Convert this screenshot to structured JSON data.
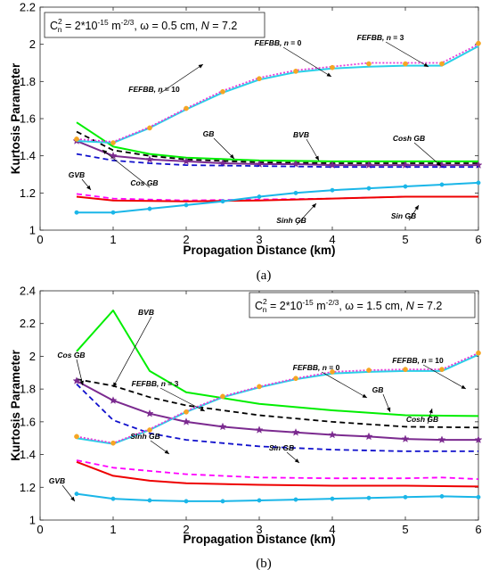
{
  "chart_data": [
    {
      "panel": "a",
      "caption": "(a)",
      "type": "line",
      "xlabel": "Propagation Distance (km)",
      "ylabel": "Kurtosis Parameter",
      "xlim": [
        0,
        6
      ],
      "ylim": [
        1,
        2.2
      ],
      "xticks": [
        "0",
        "1",
        "2",
        "3",
        "4",
        "5",
        "6"
      ],
      "yticks": [
        "1",
        "1.2",
        "1.4",
        "1.6",
        "1.8",
        "2",
        "2.2"
      ],
      "grid": false,
      "parameter_box": {
        "cn_label": "C",
        "cn_sub": "n",
        "cn_sup": "2",
        "cn_value": " = 2*10",
        "cn_exp": "-15",
        "cn_unit": " m",
        "cn_unit_exp": "-2/3",
        "omega": ",  ω = 0.5 cm,  ",
        "n_label": "N",
        "n_value": " = 7.2"
      },
      "series": [
        {
          "color": "#00ee00",
          "style": "solid",
          "marker": "none",
          "x": [
            0.5,
            1,
            1.5,
            2,
            3,
            4,
            5,
            6
          ],
          "y": [
            1.58,
            1.45,
            1.41,
            1.39,
            1.375,
            1.37,
            1.37,
            1.37
          ]
        },
        {
          "color": "#000000",
          "style": "dashed",
          "marker": "none",
          "x": [
            0.5,
            1,
            1.5,
            2,
            3,
            4,
            5,
            6
          ],
          "y": [
            1.53,
            1.43,
            1.4,
            1.38,
            1.365,
            1.36,
            1.36,
            1.36
          ]
        },
        {
          "color": "#7b2a8f",
          "style": "solid",
          "marker": "star",
          "x": [
            0.5,
            1,
            1.5,
            2,
            2.5,
            3,
            3.5,
            4,
            4.5,
            5,
            5.5,
            6
          ],
          "y": [
            1.48,
            1.4,
            1.38,
            1.37,
            1.36,
            1.355,
            1.355,
            1.35,
            1.35,
            1.35,
            1.35,
            1.35
          ]
        },
        {
          "color": "#1010cc",
          "style": "dashed",
          "marker": "none",
          "x": [
            0.5,
            1,
            1.5,
            2,
            3,
            4,
            5,
            6
          ],
          "y": [
            1.41,
            1.375,
            1.36,
            1.35,
            1.345,
            1.34,
            1.34,
            1.34
          ]
        },
        {
          "color": "#ff00ff",
          "style": "dashed",
          "marker": "none",
          "x": [
            0.5,
            1,
            2,
            3,
            4,
            5,
            6
          ],
          "y": [
            1.195,
            1.17,
            1.16,
            1.165,
            1.17,
            1.18,
            1.18
          ]
        },
        {
          "color": "#ee0000",
          "style": "solid",
          "marker": "none",
          "x": [
            0.5,
            1,
            2,
            3,
            4,
            5,
            6
          ],
          "y": [
            1.18,
            1.16,
            1.155,
            1.16,
            1.17,
            1.18,
            1.18
          ]
        },
        {
          "color": "#1ab6e8",
          "style": "solid",
          "marker": "circle",
          "x": [
            0.5,
            1,
            1.5,
            2,
            2.5,
            3,
            3.5,
            4,
            4.5,
            5,
            5.5,
            6
          ],
          "y": [
            1.095,
            1.095,
            1.115,
            1.135,
            1.155,
            1.18,
            1.2,
            1.215,
            1.225,
            1.235,
            1.245,
            1.255
          ]
        },
        {
          "color": "#2ad0e8",
          "style": "solid",
          "marker": "none",
          "x": [
            0.5,
            1,
            1.5,
            2,
            2.5,
            3,
            3.5,
            4,
            4.5,
            5,
            5.5,
            6
          ],
          "y": [
            1.48,
            1.47,
            1.55,
            1.65,
            1.74,
            1.81,
            1.85,
            1.87,
            1.88,
            1.885,
            1.885,
            1.99
          ]
        },
        {
          "color": "#e53ad8",
          "style": "dotted",
          "marker": "none",
          "x": [
            0.5,
            1,
            1.5,
            2,
            2.5,
            3,
            3.5,
            4,
            4.5,
            5,
            5.5,
            6
          ],
          "y": [
            1.49,
            1.475,
            1.555,
            1.655,
            1.75,
            1.82,
            1.86,
            1.88,
            1.9,
            1.9,
            1.9,
            2.0
          ]
        },
        {
          "color": "#f5a623",
          "style": "none",
          "marker": "circle",
          "x": [
            0.5,
            1,
            1.5,
            2,
            2.5,
            3,
            3.5,
            4,
            4.5,
            5,
            5.5,
            6
          ],
          "y": [
            1.49,
            1.47,
            1.55,
            1.655,
            1.745,
            1.815,
            1.855,
            1.875,
            1.895,
            1.895,
            1.895,
            2.005
          ]
        }
      ],
      "annotations": [
        {
          "text": "FEFBB,",
          "n": "n",
          "val": " = 10"
        },
        {
          "text": "FEFBB,",
          "n": "n",
          "val": " = 0"
        },
        {
          "text": "FEFBB,",
          "n": "n",
          "val": " = 3"
        },
        {
          "text": "GB"
        },
        {
          "text": "BVB"
        },
        {
          "text": "Cosh GB"
        },
        {
          "text": "Cos GB"
        },
        {
          "text": "GVB"
        },
        {
          "text": "Sinh GB"
        },
        {
          "text": "Sin GB"
        }
      ]
    },
    {
      "panel": "b",
      "caption": "(b)",
      "type": "line",
      "xlabel": "Propagation Distance (km)",
      "ylabel": "Kurtosis Parameter",
      "xlim": [
        0,
        6
      ],
      "ylim": [
        1,
        2.4
      ],
      "xticks": [
        "0",
        "1",
        "2",
        "3",
        "4",
        "5",
        "6"
      ],
      "yticks": [
        "1",
        "1.2",
        "1.4",
        "1.6",
        "1.8",
        "2",
        "2.2",
        "2.4"
      ],
      "grid": false,
      "parameter_box": {
        "cn_label": "C",
        "cn_sub": "n",
        "cn_sup": "2",
        "cn_value": " = 2*10",
        "cn_exp": "-15",
        "cn_unit": " m",
        "cn_unit_exp": "-2/3",
        "omega": ",  ω = 1.5 cm,  ",
        "n_label": "N",
        "n_value": " = 7.2"
      },
      "series": [
        {
          "color": "#00ee00",
          "style": "solid",
          "marker": "none",
          "x": [
            0.5,
            1,
            1.5,
            2,
            3,
            4,
            5,
            6
          ],
          "y": [
            2.03,
            2.28,
            1.91,
            1.78,
            1.71,
            1.67,
            1.64,
            1.635
          ]
        },
        {
          "color": "#000000",
          "style": "dashed",
          "marker": "none",
          "x": [
            0.5,
            1,
            1.5,
            2,
            3,
            4,
            5,
            6
          ],
          "y": [
            1.86,
            1.82,
            1.75,
            1.7,
            1.64,
            1.6,
            1.57,
            1.565
          ]
        },
        {
          "color": "#7b2a8f",
          "style": "solid",
          "marker": "star",
          "x": [
            0.5,
            1,
            1.5,
            2,
            2.5,
            3,
            3.5,
            4,
            4.5,
            5,
            5.5,
            6
          ],
          "y": [
            1.85,
            1.73,
            1.65,
            1.6,
            1.57,
            1.55,
            1.535,
            1.52,
            1.51,
            1.495,
            1.49,
            1.49
          ]
        },
        {
          "color": "#1010cc",
          "style": "dashed",
          "marker": "none",
          "x": [
            0.5,
            1,
            1.5,
            2,
            3,
            4,
            5,
            6
          ],
          "y": [
            1.83,
            1.61,
            1.53,
            1.49,
            1.45,
            1.43,
            1.42,
            1.42
          ]
        },
        {
          "color": "#ff00ff",
          "style": "dashed",
          "marker": "none",
          "x": [
            0.5,
            1,
            2,
            3,
            4,
            5,
            5.5,
            6
          ],
          "y": [
            1.365,
            1.32,
            1.28,
            1.26,
            1.255,
            1.255,
            1.26,
            1.25
          ]
        },
        {
          "color": "#ee0000",
          "style": "solid",
          "marker": "none",
          "x": [
            0.5,
            1,
            1.5,
            2,
            3,
            4,
            5,
            6
          ],
          "y": [
            1.355,
            1.27,
            1.24,
            1.225,
            1.215,
            1.21,
            1.21,
            1.205
          ]
        },
        {
          "color": "#1ab6e8",
          "style": "solid",
          "marker": "circle",
          "x": [
            0.5,
            1,
            1.5,
            2,
            2.5,
            3,
            3.5,
            4,
            4.5,
            5,
            5.5,
            6
          ],
          "y": [
            1.16,
            1.13,
            1.12,
            1.115,
            1.115,
            1.12,
            1.125,
            1.13,
            1.135,
            1.14,
            1.145,
            1.14
          ]
        },
        {
          "color": "#2ad0e8",
          "style": "solid",
          "marker": "none",
          "x": [
            0.5,
            1,
            1.5,
            2,
            2.5,
            3,
            3.5,
            4,
            4.5,
            5,
            5.5,
            6
          ],
          "y": [
            1.5,
            1.465,
            1.55,
            1.66,
            1.75,
            1.81,
            1.86,
            1.895,
            1.905,
            1.91,
            1.91,
            2.01
          ]
        },
        {
          "color": "#e53ad8",
          "style": "dotted",
          "marker": "none",
          "x": [
            0.5,
            1,
            1.5,
            2,
            2.5,
            3,
            3.5,
            4,
            4.5,
            5,
            5.5,
            6
          ],
          "y": [
            1.51,
            1.47,
            1.555,
            1.665,
            1.755,
            1.815,
            1.865,
            1.905,
            1.915,
            1.92,
            1.92,
            2.02
          ]
        },
        {
          "color": "#f5a623",
          "style": "none",
          "marker": "circle",
          "x": [
            0.5,
            1,
            1.5,
            2,
            2.5,
            3,
            3.5,
            4,
            4.5,
            5,
            5.5,
            6
          ],
          "y": [
            1.51,
            1.47,
            1.55,
            1.66,
            1.755,
            1.815,
            1.865,
            1.905,
            1.915,
            1.92,
            1.92,
            2.02
          ]
        }
      ],
      "annotations": [
        {
          "text": "BVB"
        },
        {
          "text": "Cos GB"
        },
        {
          "text": "FEFBB,",
          "n": "n",
          "val": " = 3"
        },
        {
          "text": "FEFBB,",
          "n": "n",
          "val": " = 0"
        },
        {
          "text": "FEFBB,",
          "n": "n",
          "val": " = 10"
        },
        {
          "text": "GB"
        },
        {
          "text": "Cosh GB"
        },
        {
          "text": "Sinh GB"
        },
        {
          "text": "Sin GB"
        },
        {
          "text": "GVB"
        }
      ]
    }
  ]
}
